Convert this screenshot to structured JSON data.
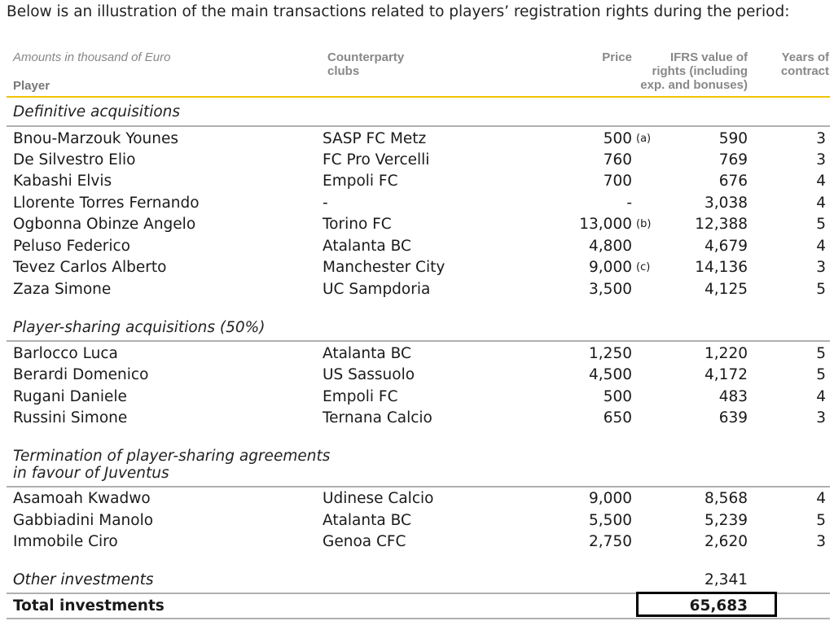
{
  "intro": "Below is an illustration of the main transactions related to players’ registration rights during the period:",
  "header": {
    "amounts": "Amounts in thousand of Euro",
    "player": "Player",
    "counterparty_line1": "Counterparty",
    "counterparty_line2": "clubs",
    "price": "Price",
    "ifrs_line1": "IFRS value of",
    "ifrs_line2": "rights (including",
    "ifrs_line3": "exp. and bonuses)",
    "years_line1": "Years of",
    "years_line2": "contract"
  },
  "sections": {
    "definitive": "Definitive acquisitions",
    "sharing": "Player-sharing acquisitions (50%)",
    "termination_line1": "Termination of player-sharing agreements",
    "termination_line2": "in favour of Juventus"
  },
  "rows": [
    {
      "player": "Bnou-Marzouk Younes",
      "club": "SASP FC Metz",
      "price": "500",
      "note": "(a)",
      "ifrs": "590",
      "years": "3"
    },
    {
      "player": "De Silvestro Elio",
      "club": "FC Pro Vercelli",
      "price": "760",
      "note": "",
      "ifrs": "769",
      "years": "3"
    },
    {
      "player": "Kabashi Elvis",
      "club": "Empoli FC",
      "price": "700",
      "note": "",
      "ifrs": "676",
      "years": "4"
    },
    {
      "player": "Llorente Torres Fernando",
      "club": "-",
      "price": "-",
      "note": "",
      "ifrs": "3,038",
      "years": "4"
    },
    {
      "player": "Ogbonna Obinze Angelo",
      "club": "Torino FC",
      "price": "13,000",
      "note": "(b)",
      "ifrs": "12,388",
      "years": "5"
    },
    {
      "player": "Peluso Federico",
      "club": "Atalanta BC",
      "price": "4,800",
      "note": "",
      "ifrs": "4,679",
      "years": "4"
    },
    {
      "player": "Tevez Carlos Alberto",
      "club": "Manchester City",
      "price": "9,000",
      "note": "(c)",
      "ifrs": "14,136",
      "years": "3"
    },
    {
      "player": "Zaza Simone",
      "club": "UC Sampdoria",
      "price": "3,500",
      "note": "",
      "ifrs": "4,125",
      "years": "5"
    },
    {
      "player": "Barlocco Luca",
      "club": "Atalanta BC",
      "price": "1,250",
      "note": "",
      "ifrs": "1,220",
      "years": "5"
    },
    {
      "player": "Berardi Domenico",
      "club": "US Sassuolo",
      "price": "4,500",
      "note": "",
      "ifrs": "4,172",
      "years": "5"
    },
    {
      "player": "Rugani Daniele",
      "club": "Empoli FC",
      "price": "500",
      "note": "",
      "ifrs": "483",
      "years": "4"
    },
    {
      "player": "Russini Simone",
      "club": "Ternana Calcio",
      "price": "650",
      "note": "",
      "ifrs": "639",
      "years": "3"
    },
    {
      "player": "Asamoah Kwadwo",
      "club": "Udinese Calcio",
      "price": "9,000",
      "note": "",
      "ifrs": "8,568",
      "years": "4"
    },
    {
      "player": "Gabbiadini Manolo",
      "club": "Atalanta BC",
      "price": "5,500",
      "note": "",
      "ifrs": "5,239",
      "years": "5"
    },
    {
      "player": "Immobile Ciro",
      "club": "Genoa CFC",
      "price": "2,750",
      "note": "",
      "ifrs": "2,620",
      "years": "3"
    }
  ],
  "other": {
    "label": "Other investments",
    "ifrs": "2,341"
  },
  "total": {
    "label": "Total investments",
    "ifrs": "65,683"
  }
}
